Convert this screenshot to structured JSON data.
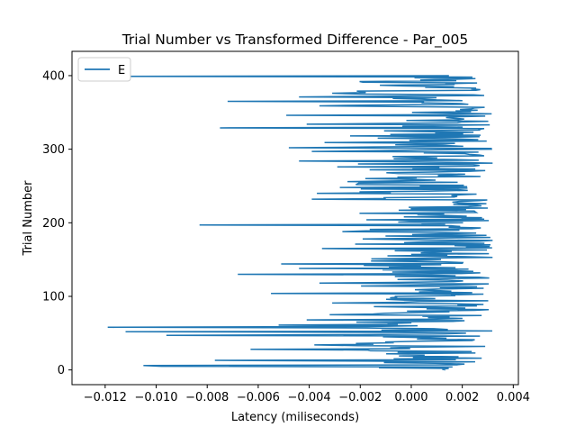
{
  "chart_data": {
    "type": "line",
    "title": "Trial Number vs Transformed Difference - Par_005",
    "xlabel": "Latency (miliseconds)",
    "ylabel": "Trial Number",
    "xlim": [
      -0.0133,
      0.0042
    ],
    "ylim": [
      -20,
      433
    ],
    "x_ticks": [
      -0.012,
      -0.01,
      -0.008,
      -0.006,
      -0.004,
      -0.002,
      0.0,
      0.002,
      0.004
    ],
    "x_tick_labels": [
      "−0.012",
      "−0.010",
      "−0.008",
      "−0.006",
      "−0.004",
      "−0.002",
      "0.000",
      "0.002",
      "0.004"
    ],
    "y_ticks": [
      0,
      100,
      200,
      300,
      400
    ],
    "y_tick_labels": [
      "0",
      "100",
      "200",
      "300",
      "400"
    ],
    "grid": false,
    "legend_position": "top-left",
    "series": [
      {
        "name": "E",
        "color": "#1f77b4",
        "outliers": {
          "5": -0.0098,
          "6": -0.0105,
          "13": -0.0077,
          "28": -0.0063,
          "34": -0.0038,
          "47": -0.0096,
          "52": -0.0112,
          "58": -0.0119,
          "61": -0.0052,
          "68": -0.0041,
          "75": -0.0032,
          "91": -0.0031,
          "104": -0.0055,
          "118": -0.0036,
          "130": -0.0068,
          "138": -0.0044,
          "144": -0.0051,
          "165": -0.0035,
          "171": -0.0022,
          "188": -0.0027,
          "197": -0.0083,
          "232": -0.0039,
          "240": -0.0037,
          "248": -0.0028,
          "256": -0.0025,
          "276": -0.0029,
          "284": -0.0044,
          "297": -0.0039,
          "302": -0.0048,
          "309": -0.0034,
          "318": -0.0024,
          "329": -0.0075,
          "334": -0.0041,
          "346": -0.0049,
          "359": -0.0036,
          "365": -0.0072,
          "371": -0.0044,
          "376": -0.0031,
          "391": -0.0019,
          "399": -0.0121
        }
      }
    ]
  }
}
